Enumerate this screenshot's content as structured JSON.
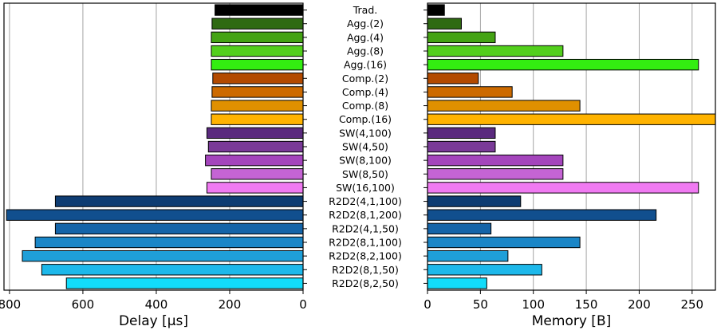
{
  "chart_data": {
    "type": "bar",
    "orientation": "horizontal",
    "categories": [
      "Trad.",
      "Agg.(2)",
      "Agg.(4)",
      "Agg.(8)",
      "Agg.(16)",
      "Comp.(2)",
      "Comp.(4)",
      "Comp.(8)",
      "Comp.(16)",
      "SW(4,100)",
      "SW(4,50)",
      "SW(8,100)",
      "SW(8,50)",
      "SW(16,100)",
      "R2D2(4,1,100)",
      "R2D2(8,1,200)",
      "R2D2(4,1,50)",
      "R2D2(8,1,100)",
      "R2D2(8,2,100)",
      "R2D2(8,1,50)",
      "R2D2(8,2,50)"
    ],
    "colors": [
      "#000000",
      "#2f6a12",
      "#44a314",
      "#52cf1c",
      "#33ee11",
      "#b34a00",
      "#cc6a00",
      "#e09000",
      "#ffb300",
      "#5a2a7e",
      "#7a3a98",
      "#a445bc",
      "#c564d4",
      "#f07af2",
      "#0e3c72",
      "#114f8e",
      "#1464a8",
      "#1a86c7",
      "#1f9fd8",
      "#1db8ea",
      "#12dcfb"
    ],
    "charts": [
      {
        "title": "",
        "xlabel": "Delay [μs]",
        "ticks": [
          800,
          600,
          400,
          200,
          0
        ],
        "xlim": [
          0,
          815
        ],
        "reversed": true,
        "values": [
          240,
          248,
          250,
          250,
          250,
          246,
          248,
          250,
          250,
          262,
          258,
          266,
          250,
          262,
          675,
          808,
          675,
          730,
          765,
          712,
          645
        ]
      },
      {
        "title": "",
        "xlabel": "Memory [B]",
        "ticks": [
          0,
          50,
          100,
          150,
          200,
          250
        ],
        "xlim": [
          0,
          272
        ],
        "reversed": false,
        "values": [
          16,
          32,
          64,
          128,
          256,
          48,
          80,
          144,
          272,
          64,
          64,
          128,
          128,
          256,
          88,
          216,
          60,
          144,
          76,
          108,
          56
        ]
      }
    ],
    "grid": true,
    "legend": "none"
  }
}
